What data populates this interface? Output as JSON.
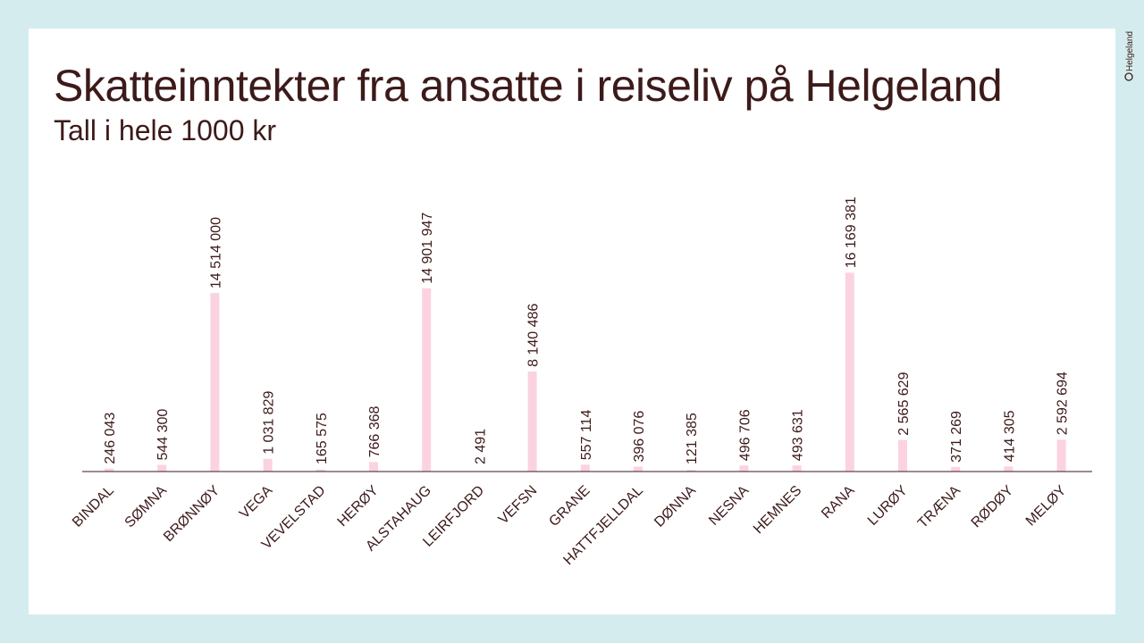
{
  "brand": {
    "logo_text": "Helgeland",
    "bar_color": "#fbd3e0",
    "text_color": "#3d1a1a",
    "background_color": "#d4ecee"
  },
  "chart_data": {
    "type": "bar",
    "title": "Skatteinntekter fra ansatte i reiseliv på Helgeland",
    "subtitle": "Tall i hele 1000 kr",
    "categories": [
      "BINDAL",
      "SØMNA",
      "BRØNNØY",
      "VEGA",
      "VEVELSTAD",
      "HERØY",
      "ALSTAHAUG",
      "LEIRFJORD",
      "VEFSN",
      "GRANE",
      "HATTFJELLDAL",
      "DØNNA",
      "NESNA",
      "HEMNES",
      "RANA",
      "LURØY",
      "TRÆNA",
      "RØDØY",
      "MELØY"
    ],
    "values": [
      246043,
      544300,
      14514000,
      1031829,
      165575,
      766368,
      14901947,
      2491,
      8140486,
      557114,
      396076,
      121385,
      496706,
      493631,
      16169381,
      2565629,
      371269,
      414305,
      2592694
    ],
    "value_labels": [
      "246 043",
      "544 300",
      "14 514 000",
      "1 031 829",
      "165 575",
      "766 368",
      "14 901 947",
      "2 491",
      "8 140 486",
      "557 114",
      "396 076",
      "121 385",
      "496 706",
      "493 631",
      "16 169 381",
      "2 565 629",
      "371 269",
      "414 305",
      "2 592 694"
    ],
    "ylim": [
      0,
      17500000
    ],
    "grid": false,
    "legend": "none"
  }
}
